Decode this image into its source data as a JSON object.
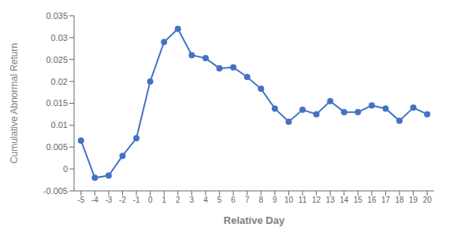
{
  "chart_data": {
    "type": "line",
    "x": [
      -5,
      -4,
      -3,
      -2,
      -1,
      0,
      1,
      2,
      3,
      4,
      5,
      6,
      7,
      8,
      9,
      10,
      11,
      12,
      13,
      14,
      15,
      16,
      17,
      18,
      19,
      20
    ],
    "values": [
      0.0065,
      -0.002,
      -0.0015,
      0.003,
      0.007,
      0.02,
      0.029,
      0.032,
      0.026,
      0.0253,
      0.023,
      0.0232,
      0.021,
      0.0183,
      0.0138,
      0.0108,
      0.0135,
      0.0125,
      0.0155,
      0.013,
      0.013,
      0.0145,
      0.0138,
      0.011,
      0.014,
      0.0125
    ],
    "color": "#4472C4",
    "marker": "circle",
    "xlabel": "Relative Day",
    "ylabel": "Cumulative Abnormal Return",
    "xlim": [
      -5.5,
      20.5
    ],
    "ylim": [
      -0.005,
      0.035
    ],
    "xticks": [
      -5,
      -4,
      -3,
      -2,
      -1,
      0,
      1,
      2,
      3,
      4,
      5,
      6,
      7,
      8,
      9,
      10,
      11,
      12,
      13,
      14,
      15,
      16,
      17,
      18,
      19,
      20
    ],
    "yticks": [
      -0.005,
      0,
      0.005,
      0.01,
      0.015,
      0.02,
      0.025,
      0.03,
      0.035
    ],
    "grid": false
  }
}
